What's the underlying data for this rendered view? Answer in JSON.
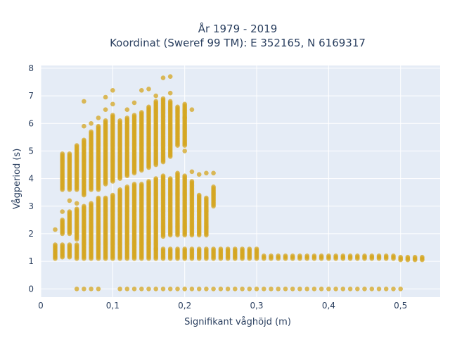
{
  "chart_data": {
    "type": "scatter",
    "title_lines": [
      "År 1979 - 2019",
      "Koordinat (Sweref 99 TM): E 352165, N 6169317"
    ],
    "xlabel": "Signifikant våghöjd (m)",
    "ylabel": "Vågperiod (s)",
    "xlim": [
      0,
      0.555
    ],
    "ylim": [
      -0.3,
      8.1
    ],
    "xticks": [
      0,
      0.1,
      0.2,
      0.3,
      0.4,
      0.5
    ],
    "xtick_labels": [
      "0",
      "0,1",
      "0,2",
      "0,3",
      "0,4",
      "0,5"
    ],
    "yticks": [
      0,
      1,
      2,
      3,
      4,
      5,
      6,
      7,
      8
    ],
    "ytick_labels": [
      "0",
      "1",
      "2",
      "3",
      "4",
      "5",
      "6",
      "7",
      "8"
    ],
    "grid": true,
    "marker_color": "#d4a520",
    "plot_bg": "#e5ecf6",
    "columns": [
      {
        "x": 0.02,
        "ranges": [
          [
            1.1,
            1.6
          ]
        ],
        "points": [
          2.15
        ]
      },
      {
        "x": 0.03,
        "ranges": [
          [
            1.15,
            1.6
          ],
          [
            2.0,
            2.5
          ],
          [
            3.6,
            4.9
          ]
        ],
        "points": [
          2.8
        ]
      },
      {
        "x": 0.04,
        "ranges": [
          [
            1.15,
            1.6
          ],
          [
            2.0,
            2.8
          ],
          [
            3.6,
            4.9
          ]
        ],
        "points": [
          3.2
        ]
      },
      {
        "x": 0.05,
        "ranges": [
          [
            1.1,
            1.6
          ],
          [
            1.8,
            2.9
          ],
          [
            3.6,
            5.2
          ]
        ],
        "points": [
          3.1,
          0
        ]
      },
      {
        "x": 0.06,
        "ranges": [
          [
            1.1,
            3.0
          ],
          [
            3.4,
            5.4
          ]
        ],
        "points": [
          6.8,
          5.9,
          0
        ]
      },
      {
        "x": 0.07,
        "ranges": [
          [
            1.1,
            3.1
          ],
          [
            3.6,
            5.7
          ]
        ],
        "points": [
          6.0,
          0
        ]
      },
      {
        "x": 0.08,
        "ranges": [
          [
            1.1,
            3.3
          ],
          [
            3.6,
            5.9
          ]
        ],
        "points": [
          6.2,
          0
        ]
      },
      {
        "x": 0.09,
        "ranges": [
          [
            1.1,
            3.3
          ],
          [
            3.8,
            6.1
          ]
        ],
        "points": [
          6.5,
          6.95
        ]
      },
      {
        "x": 0.1,
        "ranges": [
          [
            1.1,
            3.4
          ],
          [
            3.9,
            6.3
          ]
        ],
        "points": [
          6.7,
          7.2
        ]
      },
      {
        "x": 0.11,
        "ranges": [
          [
            1.1,
            3.6
          ],
          [
            4.0,
            6.1
          ]
        ],
        "points": [
          0
        ]
      },
      {
        "x": 0.12,
        "ranges": [
          [
            1.1,
            3.7
          ],
          [
            4.1,
            6.2
          ]
        ],
        "points": [
          6.5,
          0
        ]
      },
      {
        "x": 0.13,
        "ranges": [
          [
            1.1,
            3.8
          ],
          [
            4.2,
            6.3
          ]
        ],
        "points": [
          6.75,
          0
        ]
      },
      {
        "x": 0.14,
        "ranges": [
          [
            1.1,
            3.8
          ],
          [
            4.3,
            6.4
          ]
        ],
        "points": [
          7.2,
          0
        ]
      },
      {
        "x": 0.15,
        "ranges": [
          [
            1.1,
            3.9
          ],
          [
            4.4,
            6.6
          ]
        ],
        "points": [
          7.25,
          0
        ]
      },
      {
        "x": 0.16,
        "ranges": [
          [
            1.1,
            1.45
          ],
          [
            1.45,
            4.0
          ],
          [
            4.5,
            6.8
          ]
        ],
        "points": [
          7.0,
          0
        ]
      },
      {
        "x": 0.17,
        "ranges": [
          [
            1.1,
            1.45
          ],
          [
            1.9,
            4.1
          ],
          [
            4.6,
            6.9
          ]
        ],
        "points": [
          7.65,
          0
        ]
      },
      {
        "x": 0.18,
        "ranges": [
          [
            1.1,
            1.45
          ],
          [
            1.95,
            4.0
          ],
          [
            4.8,
            6.8
          ]
        ],
        "points": [
          7.7,
          7.1,
          0
        ]
      },
      {
        "x": 0.19,
        "ranges": [
          [
            1.1,
            1.45
          ],
          [
            1.95,
            4.2
          ],
          [
            5.2,
            6.6
          ]
        ],
        "points": [
          0
        ]
      },
      {
        "x": 0.2,
        "ranges": [
          [
            1.1,
            1.45
          ],
          [
            1.95,
            4.1
          ],
          [
            5.2,
            6.7
          ]
        ],
        "points": [
          6.2,
          5.0,
          0
        ]
      },
      {
        "x": 0.21,
        "ranges": [
          [
            1.1,
            1.45
          ],
          [
            1.95,
            3.9
          ]
        ],
        "points": [
          4.25,
          6.5,
          0
        ]
      },
      {
        "x": 0.22,
        "ranges": [
          [
            1.1,
            1.45
          ],
          [
            1.95,
            3.4
          ]
        ],
        "points": [
          4.15,
          0
        ]
      },
      {
        "x": 0.23,
        "ranges": [
          [
            1.1,
            1.45
          ],
          [
            1.95,
            3.3
          ]
        ],
        "points": [
          4.2,
          0
        ]
      },
      {
        "x": 0.24,
        "ranges": [
          [
            1.1,
            1.45
          ],
          [
            3.0,
            3.7
          ]
        ],
        "points": [
          4.2,
          0
        ]
      },
      {
        "x": 0.25,
        "ranges": [
          [
            1.1,
            1.45
          ]
        ],
        "points": [
          0
        ]
      },
      {
        "x": 0.26,
        "ranges": [
          [
            1.1,
            1.45
          ]
        ],
        "points": [
          0
        ]
      },
      {
        "x": 0.27,
        "ranges": [
          [
            1.1,
            1.45
          ]
        ],
        "points": [
          0
        ]
      },
      {
        "x": 0.28,
        "ranges": [
          [
            1.1,
            1.45
          ]
        ],
        "points": [
          0
        ]
      },
      {
        "x": 0.29,
        "ranges": [
          [
            1.1,
            1.45
          ]
        ],
        "points": [
          0
        ]
      },
      {
        "x": 0.3,
        "ranges": [
          [
            1.1,
            1.45
          ]
        ],
        "points": [
          0
        ]
      },
      {
        "x": 0.31,
        "ranges": [
          [
            1.1,
            1.2
          ]
        ],
        "points": [
          0
        ]
      },
      {
        "x": 0.32,
        "ranges": [
          [
            1.1,
            1.2
          ]
        ],
        "points": [
          0
        ]
      },
      {
        "x": 0.33,
        "ranges": [
          [
            1.1,
            1.2
          ]
        ],
        "points": [
          0
        ]
      },
      {
        "x": 0.34,
        "ranges": [
          [
            1.1,
            1.2
          ]
        ],
        "points": [
          0
        ]
      },
      {
        "x": 0.35,
        "ranges": [
          [
            1.1,
            1.2
          ]
        ],
        "points": [
          0
        ]
      },
      {
        "x": 0.36,
        "ranges": [
          [
            1.1,
            1.2
          ]
        ],
        "points": [
          0
        ]
      },
      {
        "x": 0.37,
        "ranges": [
          [
            1.1,
            1.2
          ]
        ],
        "points": [
          0
        ]
      },
      {
        "x": 0.38,
        "ranges": [
          [
            1.1,
            1.2
          ]
        ],
        "points": [
          0
        ]
      },
      {
        "x": 0.39,
        "ranges": [
          [
            1.1,
            1.2
          ]
        ],
        "points": [
          0
        ]
      },
      {
        "x": 0.4,
        "ranges": [
          [
            1.1,
            1.2
          ]
        ],
        "points": [
          0
        ]
      },
      {
        "x": 0.41,
        "ranges": [
          [
            1.1,
            1.2
          ]
        ],
        "points": [
          0
        ]
      },
      {
        "x": 0.42,
        "ranges": [
          [
            1.1,
            1.2
          ]
        ],
        "points": [
          0
        ]
      },
      {
        "x": 0.43,
        "ranges": [
          [
            1.1,
            1.2
          ]
        ],
        "points": [
          0
        ]
      },
      {
        "x": 0.44,
        "ranges": [
          [
            1.1,
            1.2
          ]
        ],
        "points": [
          0
        ]
      },
      {
        "x": 0.45,
        "ranges": [
          [
            1.1,
            1.2
          ]
        ],
        "points": [
          0
        ]
      },
      {
        "x": 0.46,
        "ranges": [
          [
            1.1,
            1.2
          ]
        ],
        "points": [
          0
        ]
      },
      {
        "x": 0.47,
        "ranges": [
          [
            1.1,
            1.2
          ]
        ],
        "points": [
          0
        ]
      },
      {
        "x": 0.48,
        "ranges": [
          [
            1.1,
            1.2
          ]
        ],
        "points": [
          0
        ]
      },
      {
        "x": 0.49,
        "ranges": [
          [
            1.1,
            1.2
          ]
        ],
        "points": [
          0
        ]
      },
      {
        "x": 0.5,
        "ranges": [
          [
            1.05,
            1.15
          ]
        ],
        "points": [
          0
        ]
      },
      {
        "x": 0.51,
        "ranges": [
          [
            1.05,
            1.15
          ]
        ],
        "points": []
      },
      {
        "x": 0.52,
        "ranges": [
          [
            1.05,
            1.15
          ]
        ],
        "points": []
      },
      {
        "x": 0.53,
        "ranges": [
          [
            1.05,
            1.15
          ]
        ],
        "points": []
      }
    ]
  }
}
